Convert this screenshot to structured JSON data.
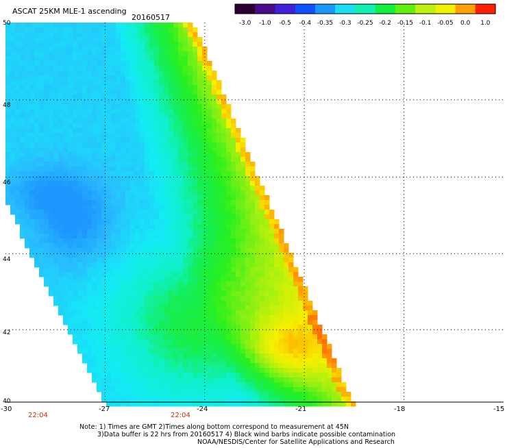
{
  "header": {
    "product": "ASCAT 25KM MLE-1 ascending",
    "date": "20160517"
  },
  "colorbar": {
    "labels": [
      "-3.0",
      "-1.0",
      "-0.5",
      "-0.4",
      "-0.35",
      "-0.3",
      "-0.25",
      "-0.2",
      "-0.15",
      "-0.1",
      "-0.05",
      "0.0",
      "1.0"
    ],
    "colors": [
      "#2a0030",
      "#4a0a8a",
      "#4020d8",
      "#1050ff",
      "#1898ff",
      "#18e0f0",
      "#10f0b0",
      "#10ee40",
      "#60f010",
      "#c0f010",
      "#f0f000",
      "#ffa000",
      "#ff2000"
    ]
  },
  "axes": {
    "lon_ticks": [
      "-30",
      "-27",
      "-24",
      "-21",
      "-18",
      "-15"
    ],
    "lat_ticks": [
      "50",
      "48",
      "46",
      "44",
      "42",
      "40"
    ],
    "lon_range": [
      -30,
      -15
    ],
    "lat_range": [
      40,
      50
    ]
  },
  "time_labels": [
    "22:04",
    "22:04"
  ],
  "notes": [
    "Note: 1) Times are GMT 2)Times along bottom correspond to measurement at 45N",
    "3)Data buffer is 22 hrs from 20160517 4) Black wind barbs indicate possible contamination",
    "NOAA/NESDIS/Center for Satellite Applications and Research"
  ],
  "colors": {
    "time_label": "#c03000",
    "grid": "#000000"
  }
}
